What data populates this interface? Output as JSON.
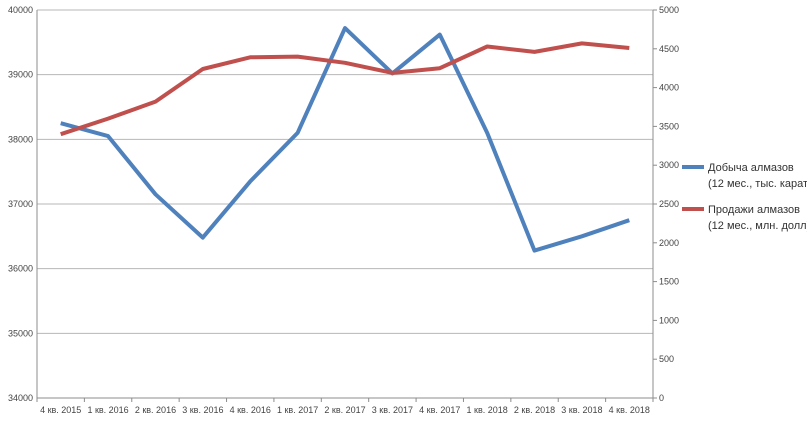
{
  "chart_data": {
    "type": "line",
    "categories": [
      "4 кв. 2015",
      "1 кв. 2016",
      "2 кв. 2016",
      "3 кв. 2016",
      "4 кв. 2016",
      "1 кв. 2017",
      "2 кв. 2017",
      "3 кв. 2017",
      "4 кв. 2017",
      "1 кв. 2018",
      "2 кв. 2018",
      "3 кв. 2018",
      "4 кв. 2018"
    ],
    "y_left": {
      "min": 34000,
      "max": 40000,
      "step": 1000,
      "ticks": [
        "34000",
        "35000",
        "36000",
        "37000",
        "38000",
        "39000",
        "40000"
      ]
    },
    "y_right": {
      "min": 0,
      "max": 5000,
      "step": 500,
      "ticks": [
        "0",
        "500",
        "1000",
        "1500",
        "2000",
        "2500",
        "3000",
        "3500",
        "4000",
        "4500",
        "5000"
      ]
    },
    "grid": true,
    "legend_position": "right",
    "series": [
      {
        "name_line1": "Добыча алмазов",
        "name_line2": "(12 мес., тыс. карат)",
        "axis": "left",
        "color": "#4f81bd",
        "values": [
          38250,
          38050,
          37150,
          36480,
          37350,
          38100,
          39720,
          39020,
          39620,
          38100,
          36280,
          36500,
          36750
        ]
      },
      {
        "name_line1": "Продажи алмазов",
        "name_line2": "(12 мес., млн. долл)",
        "axis": "right",
        "color": "#c0504d",
        "values": [
          3400,
          3600,
          3820,
          4240,
          4390,
          4400,
          4320,
          4190,
          4250,
          4530,
          4460,
          4570,
          4510
        ]
      }
    ]
  }
}
